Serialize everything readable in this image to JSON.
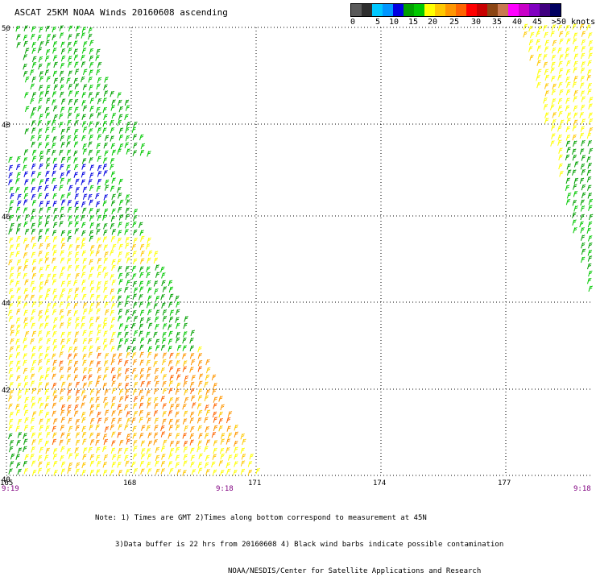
{
  "title": "ASCAT 25KM NOAA Winds 20160608 ascending",
  "scale": {
    "tick_labels": [
      "0",
      "5",
      "10",
      "15",
      "20",
      "25",
      "30",
      "35",
      "40",
      "45",
      ">50 knots"
    ],
    "colors": [
      "#5a5a5a",
      "#2f2f2f",
      "#00c8ff",
      "#0096ff",
      "#0000e0",
      "#00a000",
      "#00c800",
      "#ffff00",
      "#ffc800",
      "#ff9600",
      "#ff6400",
      "#ff0000",
      "#c80000",
      "#8b4513",
      "#c87850",
      "#ff00ff",
      "#c800c8",
      "#8000c0",
      "#400080",
      "#000060"
    ]
  },
  "map": {
    "lat_labels": [
      "50",
      "48",
      "46",
      "44",
      "42",
      "40"
    ],
    "lon_labels": [
      "165",
      "168",
      "171",
      "174",
      "177"
    ],
    "time_labels": [
      "9:19",
      "9:18",
      "9:18"
    ],
    "colors": {
      "grid": "#000000",
      "lat_lon_text": "#000000",
      "time_text": "#800080"
    }
  },
  "notes": [
    "Note: 1) Times are GMT 2)Times along bottom correspond to measurement at 45N",
    "3)Data buffer is 22 hrs from 20160608 4) Black wind barbs indicate possible contamination",
    "NOAA/NESDIS/Center for Satellite Applications and Research"
  ]
}
